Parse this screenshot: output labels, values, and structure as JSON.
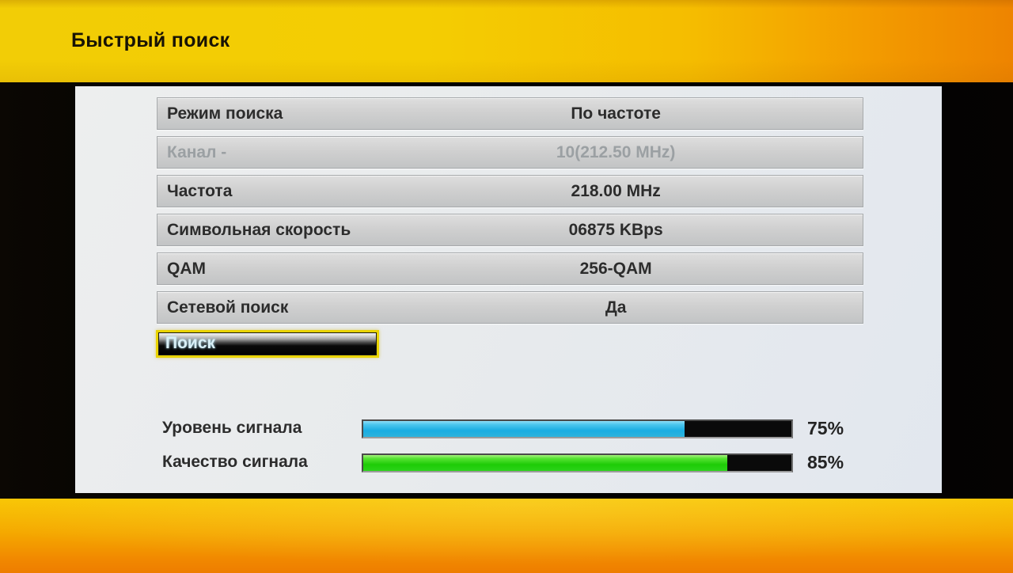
{
  "header": {
    "title": "Быстрый поиск"
  },
  "form": {
    "rows": [
      {
        "label": "Режим поиска",
        "value": "По частоте",
        "disabled": false
      },
      {
        "label": "Канал -",
        "value": "10(212.50 MHz)",
        "disabled": true
      },
      {
        "label": "Частота",
        "value": "218.00 MHz",
        "disabled": false
      },
      {
        "label": "Символьная скорость",
        "value": "06875 KBps",
        "disabled": false
      },
      {
        "label": "QAM",
        "value": "256-QAM",
        "disabled": false
      },
      {
        "label": "Сетевой поиск",
        "value": "Да",
        "disabled": false
      }
    ],
    "search_button_label": "Поиск"
  },
  "signals": [
    {
      "label": "Уровень сигнала",
      "percent": 75,
      "percent_label": "75%",
      "bar_color": "#1fb0e4"
    },
    {
      "label": "Качество сигнала",
      "percent": 85,
      "percent_label": "85%",
      "bar_color": "#28d00e"
    }
  ],
  "colors": {
    "header_yellow": "#f4cd02",
    "header_orange": "#ee8400",
    "panel_gray": "#e8ebed",
    "row_gray": "#cfcfcf",
    "button_border_yellow": "#e9d303",
    "button_text": "#d9eff6",
    "footer_top": "#f8c502",
    "footer_bottom": "#ee7d00"
  }
}
